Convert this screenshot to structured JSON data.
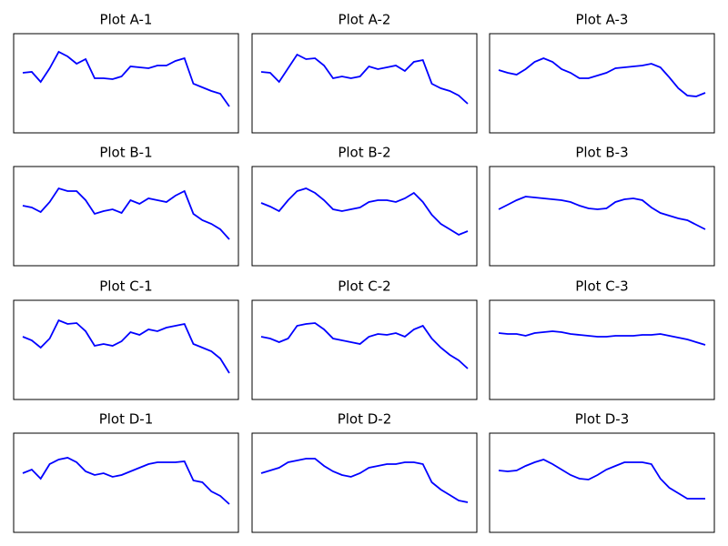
{
  "chart_data": [
    {
      "type": "line",
      "title": "Plot A-1",
      "color": "#0000ff",
      "ylim": [
        0,
        109
      ],
      "values": [
        66,
        67,
        56,
        71,
        89,
        84,
        76,
        81,
        60,
        60,
        59,
        62,
        73,
        72,
        71,
        74,
        74,
        79,
        82,
        54,
        50,
        46,
        43,
        29
      ]
    },
    {
      "type": "line",
      "title": "Plot A-2",
      "color": "#0000ff",
      "ylim": [
        0,
        109
      ],
      "values": [
        67,
        66,
        56,
        71,
        86,
        81,
        82,
        74,
        60,
        62,
        60,
        62,
        73,
        70,
        72,
        74,
        68,
        78,
        80,
        54,
        49,
        46,
        41,
        32
      ]
    },
    {
      "type": "line",
      "title": "Plot A-3",
      "color": "#0000ff",
      "ylim": [
        0,
        109
      ],
      "values": [
        69,
        66,
        64,
        70,
        78,
        82,
        78,
        70,
        66,
        60,
        60,
        63,
        66,
        71,
        72,
        73,
        74,
        76,
        72,
        61,
        49,
        41,
        40,
        44
      ]
    },
    {
      "type": "line",
      "title": "Plot B-1",
      "color": "#0000ff",
      "ylim": [
        0,
        109
      ],
      "values": [
        66,
        64,
        59,
        70,
        85,
        82,
        82,
        72,
        57,
        60,
        62,
        58,
        72,
        68,
        74,
        72,
        70,
        77,
        82,
        57,
        50,
        46,
        40,
        29
      ]
    },
    {
      "type": "line",
      "title": "Plot B-2",
      "color": "#0000ff",
      "ylim": [
        0,
        109
      ],
      "values": [
        69,
        65,
        60,
        72,
        82,
        85,
        80,
        72,
        62,
        60,
        62,
        64,
        70,
        72,
        72,
        70,
        74,
        80,
        70,
        56,
        46,
        40,
        34,
        38
      ]
    },
    {
      "type": "line",
      "title": "Plot B-3",
      "color": "#0000ff",
      "ylim": [
        0,
        109
      ],
      "values": [
        62,
        67,
        72,
        76,
        75,
        74,
        73,
        72,
        70,
        66,
        63,
        62,
        63,
        70,
        73,
        74,
        72,
        64,
        58,
        55,
        52,
        50,
        45,
        40
      ]
    },
    {
      "type": "line",
      "title": "Plot C-1",
      "color": "#0000ff",
      "ylim": [
        0,
        109
      ],
      "values": [
        69,
        65,
        57,
        67,
        87,
        83,
        84,
        75,
        59,
        61,
        59,
        64,
        74,
        71,
        77,
        75,
        79,
        81,
        83,
        61,
        57,
        53,
        45,
        29
      ]
    },
    {
      "type": "line",
      "title": "Plot C-2",
      "color": "#0000ff",
      "ylim": [
        0,
        109
      ],
      "values": [
        69,
        67,
        63,
        67,
        81,
        83,
        84,
        77,
        67,
        65,
        63,
        61,
        69,
        72,
        71,
        73,
        69,
        77,
        81,
        67,
        57,
        49,
        43,
        34
      ]
    },
    {
      "type": "line",
      "title": "Plot C-3",
      "color": "#0000ff",
      "ylim": [
        0,
        109
      ],
      "values": [
        73,
        72,
        72,
        70,
        73,
        74,
        75,
        74,
        72,
        71,
        70,
        69,
        69,
        70,
        70,
        70,
        71,
        71,
        72,
        70,
        68,
        66,
        63,
        60
      ]
    },
    {
      "type": "line",
      "title": "Plot D-1",
      "color": "#0000ff",
      "ylim": [
        0,
        109
      ],
      "values": [
        65,
        69,
        59,
        75,
        80,
        82,
        77,
        67,
        63,
        65,
        61,
        63,
        67,
        71,
        75,
        77,
        77,
        77,
        78,
        57,
        55,
        45,
        40,
        31
      ]
    },
    {
      "type": "line",
      "title": "Plot D-2",
      "color": "#0000ff",
      "ylim": [
        0,
        109
      ],
      "values": [
        65,
        68,
        71,
        77,
        79,
        81,
        81,
        73,
        67,
        63,
        61,
        65,
        71,
        73,
        75,
        75,
        77,
        77,
        75,
        55,
        47,
        41,
        35,
        33
      ]
    },
    {
      "type": "line",
      "title": "Plot D-3",
      "color": "#0000ff",
      "ylim": [
        0,
        109
      ],
      "values": [
        68,
        67,
        68,
        73,
        77,
        80,
        75,
        69,
        63,
        59,
        58,
        63,
        69,
        73,
        77,
        77,
        77,
        75,
        59,
        49,
        43,
        37,
        37,
        37
      ]
    }
  ]
}
